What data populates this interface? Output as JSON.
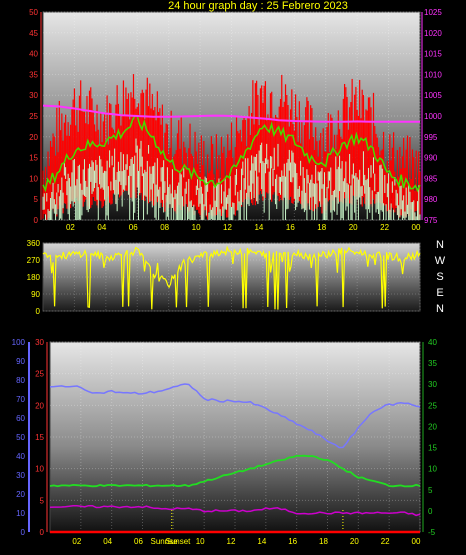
{
  "title": "24 hour graph day : 25 Febrero 2023",
  "colors": {
    "background": "#000000",
    "title": "#ffff00",
    "wind_gust": "#ff0000",
    "wind_avg": "#44dd00",
    "wind_speed": "#c8f5c8",
    "pressure": "#ff33ff",
    "direction": "#ffff00",
    "humidity": "#7777ff",
    "temperature": "#22dd22",
    "dewpoint": "#cc00cc",
    "rain": "#ff0000",
    "axis_blue": "#6666ff",
    "axis_green": "#22aa22"
  },
  "chart_data": [
    {
      "type": "line",
      "name": "wind-and-pressure",
      "x_ticks": [
        "02",
        "04",
        "06",
        "08",
        "10",
        "12",
        "14",
        "16",
        "18",
        "20",
        "22",
        "00"
      ],
      "ylim": [
        0,
        50
      ],
      "y_ticks": [
        0,
        5,
        10,
        15,
        20,
        25,
        30,
        35,
        40,
        45,
        50
      ],
      "y2lim": [
        975,
        1025
      ],
      "y2_ticks": [
        975,
        980,
        985,
        990,
        995,
        1000,
        1005,
        1010,
        1015,
        1020,
        1025
      ],
      "hours": [
        0,
        1,
        2,
        3,
        4,
        5,
        6,
        7,
        8,
        9,
        10,
        11,
        12,
        13,
        14,
        15,
        16,
        17,
        18,
        19,
        20,
        21,
        22,
        23,
        24
      ],
      "series": [
        {
          "key": "gust",
          "values": [
            12,
            22,
            28,
            26,
            24,
            29,
            33,
            26,
            20,
            19,
            15,
            14,
            18,
            25,
            31,
            30,
            27,
            22,
            20,
            26,
            28,
            24,
            16,
            14,
            12
          ]
        },
        {
          "key": "avg",
          "values": [
            7,
            12,
            17,
            18,
            19,
            21,
            24,
            20,
            14,
            12,
            10,
            9,
            11,
            17,
            23,
            21,
            19,
            15,
            14,
            18,
            20,
            17,
            11,
            9,
            8
          ]
        },
        {
          "key": "speed",
          "values": [
            4,
            8,
            12,
            11,
            12,
            14,
            16,
            13,
            9,
            8,
            6,
            6,
            7,
            11,
            15,
            14,
            12,
            9,
            9,
            12,
            13,
            11,
            7,
            6,
            5
          ]
        },
        {
          "key": "pressure",
          "values": [
            1002.5,
            1002.3,
            1001.8,
            1001.2,
            1000.6,
            1000.2,
            1000.0,
            999.8,
            999.8,
            999.9,
            1000.0,
            1000.1,
            1000.0,
            999.7,
            999.4,
            999.0,
            998.8,
            998.7,
            998.6,
            998.6,
            998.7,
            998.6,
            998.6,
            998.6,
            998.6
          ]
        }
      ]
    },
    {
      "type": "line",
      "name": "wind-direction",
      "x_ticks": [
        "02",
        "04",
        "06",
        "08",
        "10",
        "12",
        "14",
        "16",
        "18",
        "20",
        "22",
        "00"
      ],
      "ylim": [
        0,
        360
      ],
      "y_ticks": [
        0,
        90,
        180,
        270,
        360
      ],
      "direction_labels": [
        "N",
        "W",
        "S",
        "E",
        "N"
      ],
      "series": [
        {
          "key": "direction",
          "values": [
            310,
            290,
            300,
            310,
            280,
            300,
            320,
            200,
            140,
            260,
            290,
            310,
            320,
            315,
            300,
            320,
            310,
            290,
            300,
            320,
            310,
            300,
            290,
            280,
            300
          ]
        }
      ]
    },
    {
      "type": "line",
      "name": "humidity-temperature",
      "x_ticks": [
        "02",
        "04",
        "06",
        "08",
        "10",
        "12",
        "14",
        "16",
        "18",
        "20",
        "22",
        "00"
      ],
      "ylim_humidity": [
        0,
        100
      ],
      "humidity_ticks": [
        0,
        10,
        20,
        30,
        40,
        50,
        60,
        70,
        80,
        90,
        100
      ],
      "ylim_rain": [
        0,
        30
      ],
      "rain_ticks": [
        0,
        5,
        10,
        15,
        20,
        25,
        30
      ],
      "ylim_temp": [
        -5,
        40
      ],
      "temp_ticks": [
        -5,
        0,
        5,
        10,
        15,
        20,
        25,
        30,
        35,
        40
      ],
      "sun_labels": [
        "Sunrise",
        "Sunset"
      ],
      "series": [
        {
          "key": "humidity",
          "values": [
            76,
            77,
            76,
            73,
            74,
            73,
            73,
            74,
            76,
            78,
            70,
            69,
            69,
            68,
            65,
            61,
            57,
            53,
            48,
            44,
            55,
            64,
            67,
            68,
            66
          ]
        },
        {
          "key": "temperature",
          "values": [
            6,
            6,
            6,
            6,
            6,
            6,
            6,
            6,
            6,
            6,
            7,
            8,
            9,
            10,
            11,
            12,
            13,
            13,
            12,
            10,
            8,
            7,
            6,
            6,
            6
          ]
        },
        {
          "key": "dewpoint",
          "values": [
            1,
            1,
            1,
            1,
            1,
            1,
            1,
            0.5,
            0.5,
            0.5,
            0,
            0,
            0,
            0,
            0.5,
            0.5,
            -0.5,
            -0.5,
            -0.5,
            -0.5,
            -0.5,
            -0.5,
            -0.5,
            -0.5,
            -1
          ]
        },
        {
          "key": "rain",
          "values": [
            0,
            0,
            0,
            0,
            0,
            0,
            0,
            0,
            0,
            0,
            0,
            0,
            0,
            0,
            0,
            0,
            0,
            0,
            0,
            0,
            0,
            0,
            0,
            0,
            0
          ]
        }
      ]
    }
  ]
}
